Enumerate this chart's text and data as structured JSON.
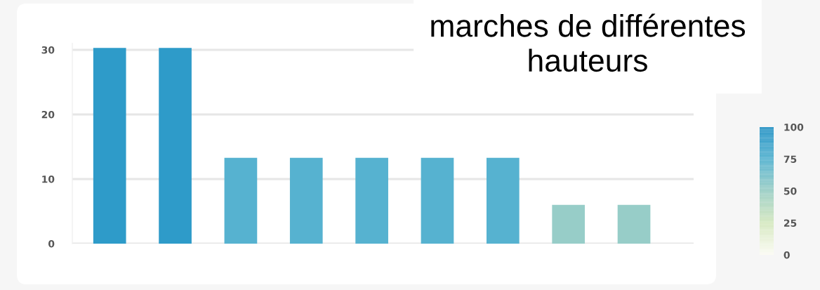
{
  "chart_data": {
    "type": "bar",
    "title": "marches de différentes\nhauteurs",
    "categories": [
      null,
      null,
      null,
      null,
      null,
      null,
      null,
      null,
      null
    ],
    "values": [
      30.3,
      30.3,
      13.3,
      13.3,
      13.3,
      13.3,
      13.3,
      6,
      6
    ],
    "colors": [
      "#2e9bc9",
      "#2e9bc9",
      "#56b2d0",
      "#56b2d0",
      "#56b2d0",
      "#56b2d0",
      "#56b2d0",
      "#97cdc8",
      "#97cdc8"
    ],
    "ylim": [
      0,
      31
    ],
    "yticks": [
      0,
      10,
      20,
      30
    ],
    "grid": "y",
    "tick_labels": "y",
    "clim": [
      0,
      100
    ],
    "cticks": [
      0,
      25,
      50,
      75,
      100
    ]
  }
}
